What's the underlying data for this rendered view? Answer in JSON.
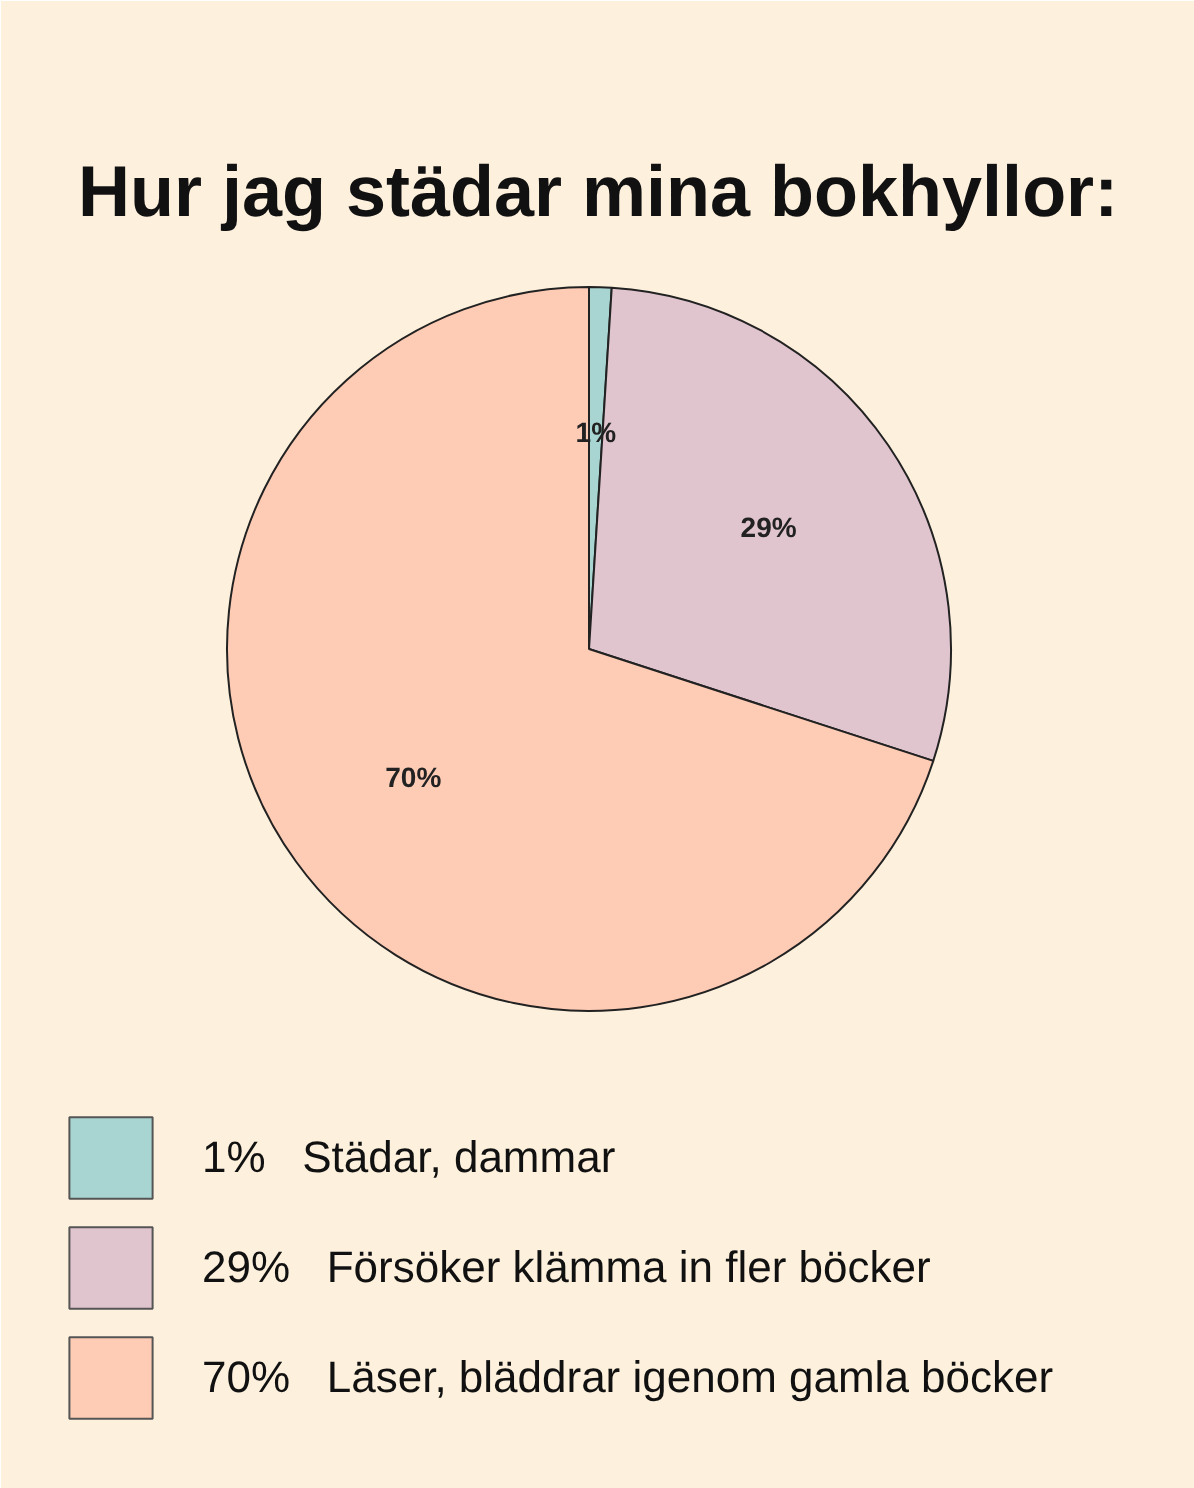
{
  "chart_data": {
    "type": "pie",
    "title": "Hur jag städar mina bokhyllor:",
    "categories": [
      "Städar, dammar",
      "Försöker klämma in fler böcker",
      "Läser, bläddrar igenom gamla böcker"
    ],
    "values": [
      1,
      29,
      70
    ],
    "value_labels": [
      "1%",
      "29%",
      "70%"
    ],
    "colors": [
      "#a8d5d1",
      "#e0c5cf",
      "#fecbb5"
    ],
    "legend": "bottom"
  }
}
